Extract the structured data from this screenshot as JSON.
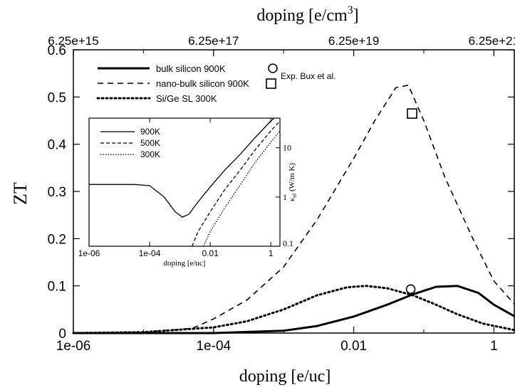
{
  "chart_data": [
    {
      "type": "line",
      "title": "",
      "xlabel": "doping [e/uc]",
      "ylabel": "ZT",
      "x_scale": "log",
      "xlim": [
        1e-06,
        2
      ],
      "ylim": [
        0,
        0.6
      ],
      "x_ticks": [
        "1e-06",
        "1e-04",
        "0.01",
        "1"
      ],
      "y_ticks": [
        "0",
        "0.1",
        "0.2",
        "0.3",
        "0.4",
        "0.5",
        "0.6"
      ],
      "top_axis": {
        "label_prefix": "doping [e/cm",
        "label_sup": "3",
        "label_suffix": "]",
        "ticks": [
          "6.25e+15",
          "6.25e+17",
          "6.25e+19",
          "6.25e+21"
        ]
      },
      "legend_position": "top-left",
      "series": [
        {
          "name": "bulk silicon 900K",
          "style": "solid",
          "x": [
            1e-06,
            0.0001,
            0.001,
            0.003,
            0.01,
            0.03,
            0.07,
            0.15,
            0.3,
            0.6,
            1.0,
            2.0
          ],
          "y": [
            0.0,
            0.0,
            0.005,
            0.015,
            0.035,
            0.06,
            0.082,
            0.098,
            0.1,
            0.085,
            0.06,
            0.035
          ]
        },
        {
          "name": "nano-bulk silicon 900K",
          "style": "dashed",
          "x": [
            1e-06,
            1e-05,
            5e-05,
            0.0001,
            0.0003,
            0.001,
            0.003,
            0.01,
            0.02,
            0.04,
            0.06,
            0.1,
            0.2,
            0.5,
            1.0,
            2.0
          ],
          "y": [
            0.0,
            0.002,
            0.01,
            0.03,
            0.07,
            0.14,
            0.24,
            0.37,
            0.45,
            0.52,
            0.525,
            0.45,
            0.33,
            0.2,
            0.11,
            0.06
          ]
        },
        {
          "name": "Si/Ge SL 300K",
          "style": "dotted",
          "x": [
            1e-06,
            1e-05,
            0.0001,
            0.0003,
            0.001,
            0.003,
            0.008,
            0.015,
            0.03,
            0.07,
            0.15,
            0.3,
            0.7,
            2.0
          ],
          "y": [
            0.0,
            0.002,
            0.012,
            0.025,
            0.05,
            0.08,
            0.097,
            0.1,
            0.095,
            0.08,
            0.06,
            0.04,
            0.02,
            0.006
          ]
        }
      ],
      "markers": [
        {
          "name": "Exp. Bux et al.",
          "shape": "circle",
          "x": 0.065,
          "y": 0.093
        },
        {
          "name": "",
          "shape": "square",
          "x": 0.068,
          "y": 0.465
        }
      ]
    },
    {
      "type": "line",
      "title": "",
      "xlabel": "doping [e/uc]",
      "ylabel_main": "κ",
      "ylabel_sub": "el",
      "ylabel_unit": " (W/m K)",
      "x_scale": "log",
      "y_scale": "log",
      "xlim": [
        1e-06,
        2
      ],
      "ylim": [
        0.1,
        40
      ],
      "x_ticks": [
        "1e-06",
        "1e-04",
        "0.01",
        "1"
      ],
      "y_ticks": [
        "0.1",
        "1",
        "10"
      ],
      "legend_position": "top-left",
      "series": [
        {
          "name": "900K",
          "style": "solid",
          "x": [
            1e-06,
            1e-05,
            3e-05,
            0.0001,
            0.0003,
            0.0007,
            0.0012,
            0.002,
            0.004,
            0.01,
            0.03,
            0.1,
            0.3,
            1.0,
            2.0
          ],
          "y": [
            1.8,
            1.8,
            1.8,
            1.7,
            1.0,
            0.5,
            0.39,
            0.45,
            0.8,
            1.6,
            3.5,
            7.5,
            16,
            35,
            50
          ]
        },
        {
          "name": "500K",
          "style": "dashed",
          "x": [
            0.0025,
            0.004,
            0.01,
            0.03,
            0.1,
            0.3,
            1.0,
            2.0
          ],
          "y": [
            0.1,
            0.2,
            0.5,
            1.4,
            3.6,
            9.0,
            22,
            35
          ]
        },
        {
          "name": "300K",
          "style": "dotted",
          "x": [
            0.006,
            0.01,
            0.03,
            0.1,
            0.3,
            1.0,
            2.0
          ],
          "y": [
            0.1,
            0.2,
            0.6,
            1.8,
            5.0,
            13,
            22
          ]
        }
      ]
    }
  ]
}
